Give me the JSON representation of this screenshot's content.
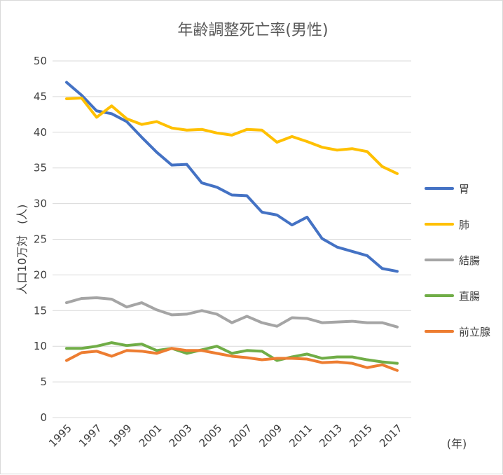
{
  "chart_data": {
    "type": "line",
    "title": "年齢調整死亡率(男性)",
    "xlabel": "(年)",
    "ylabel": "人口10万対　(人)",
    "x": [
      1995,
      1996,
      1997,
      1998,
      1999,
      2000,
      2001,
      2002,
      2003,
      2004,
      2005,
      2006,
      2007,
      2008,
      2009,
      2010,
      2011,
      2012,
      2013,
      2014,
      2015,
      2016,
      2017
    ],
    "x_tick_labels": [
      "1995",
      "1997",
      "1999",
      "2001",
      "2003",
      "2005",
      "2007",
      "2009",
      "2011",
      "2013",
      "2015",
      "2017"
    ],
    "ylim": [
      0,
      50
    ],
    "y_ticks": [
      0,
      5,
      10,
      15,
      20,
      25,
      30,
      35,
      40,
      45,
      50
    ],
    "grid": true,
    "legend_position": "right",
    "series": [
      {
        "name": "胃",
        "color": "#4472C4",
        "values": [
          47.0,
          45.2,
          43.0,
          42.6,
          41.5,
          39.3,
          37.2,
          35.4,
          35.5,
          32.9,
          32.3,
          31.2,
          31.1,
          28.8,
          28.4,
          27.0,
          28.1,
          25.1,
          23.9,
          23.3,
          22.7,
          20.9,
          20.5
        ]
      },
      {
        "name": "肺",
        "color": "#FFC000",
        "values": [
          44.7,
          44.8,
          42.1,
          43.7,
          41.9,
          41.1,
          41.5,
          40.6,
          40.3,
          40.4,
          39.9,
          39.6,
          40.4,
          40.3,
          38.6,
          39.4,
          38.7,
          37.9,
          37.5,
          37.7,
          37.3,
          35.2,
          34.2
        ]
      },
      {
        "name": "結腸",
        "color": "#A5A5A5",
        "values": [
          16.1,
          16.7,
          16.8,
          16.6,
          15.5,
          16.1,
          15.1,
          14.4,
          14.5,
          15.0,
          14.5,
          13.3,
          14.2,
          13.3,
          12.8,
          14.0,
          13.9,
          13.3,
          13.4,
          13.5,
          13.3,
          13.3,
          12.7
        ]
      },
      {
        "name": "直腸",
        "color": "#70AD47",
        "values": [
          9.7,
          9.7,
          10.0,
          10.5,
          10.1,
          10.3,
          9.4,
          9.7,
          9.0,
          9.5,
          10.0,
          9.0,
          9.4,
          9.3,
          8.0,
          8.5,
          8.9,
          8.3,
          8.5,
          8.5,
          8.1,
          7.8,
          7.6
        ]
      },
      {
        "name": "前立腺",
        "color": "#ED7D31",
        "values": [
          8.0,
          9.1,
          9.3,
          8.6,
          9.4,
          9.3,
          9.0,
          9.7,
          9.4,
          9.4,
          9.0,
          8.6,
          8.4,
          8.1,
          8.3,
          8.3,
          8.2,
          7.7,
          7.8,
          7.6,
          7.0,
          7.4,
          6.6
        ]
      }
    ]
  }
}
